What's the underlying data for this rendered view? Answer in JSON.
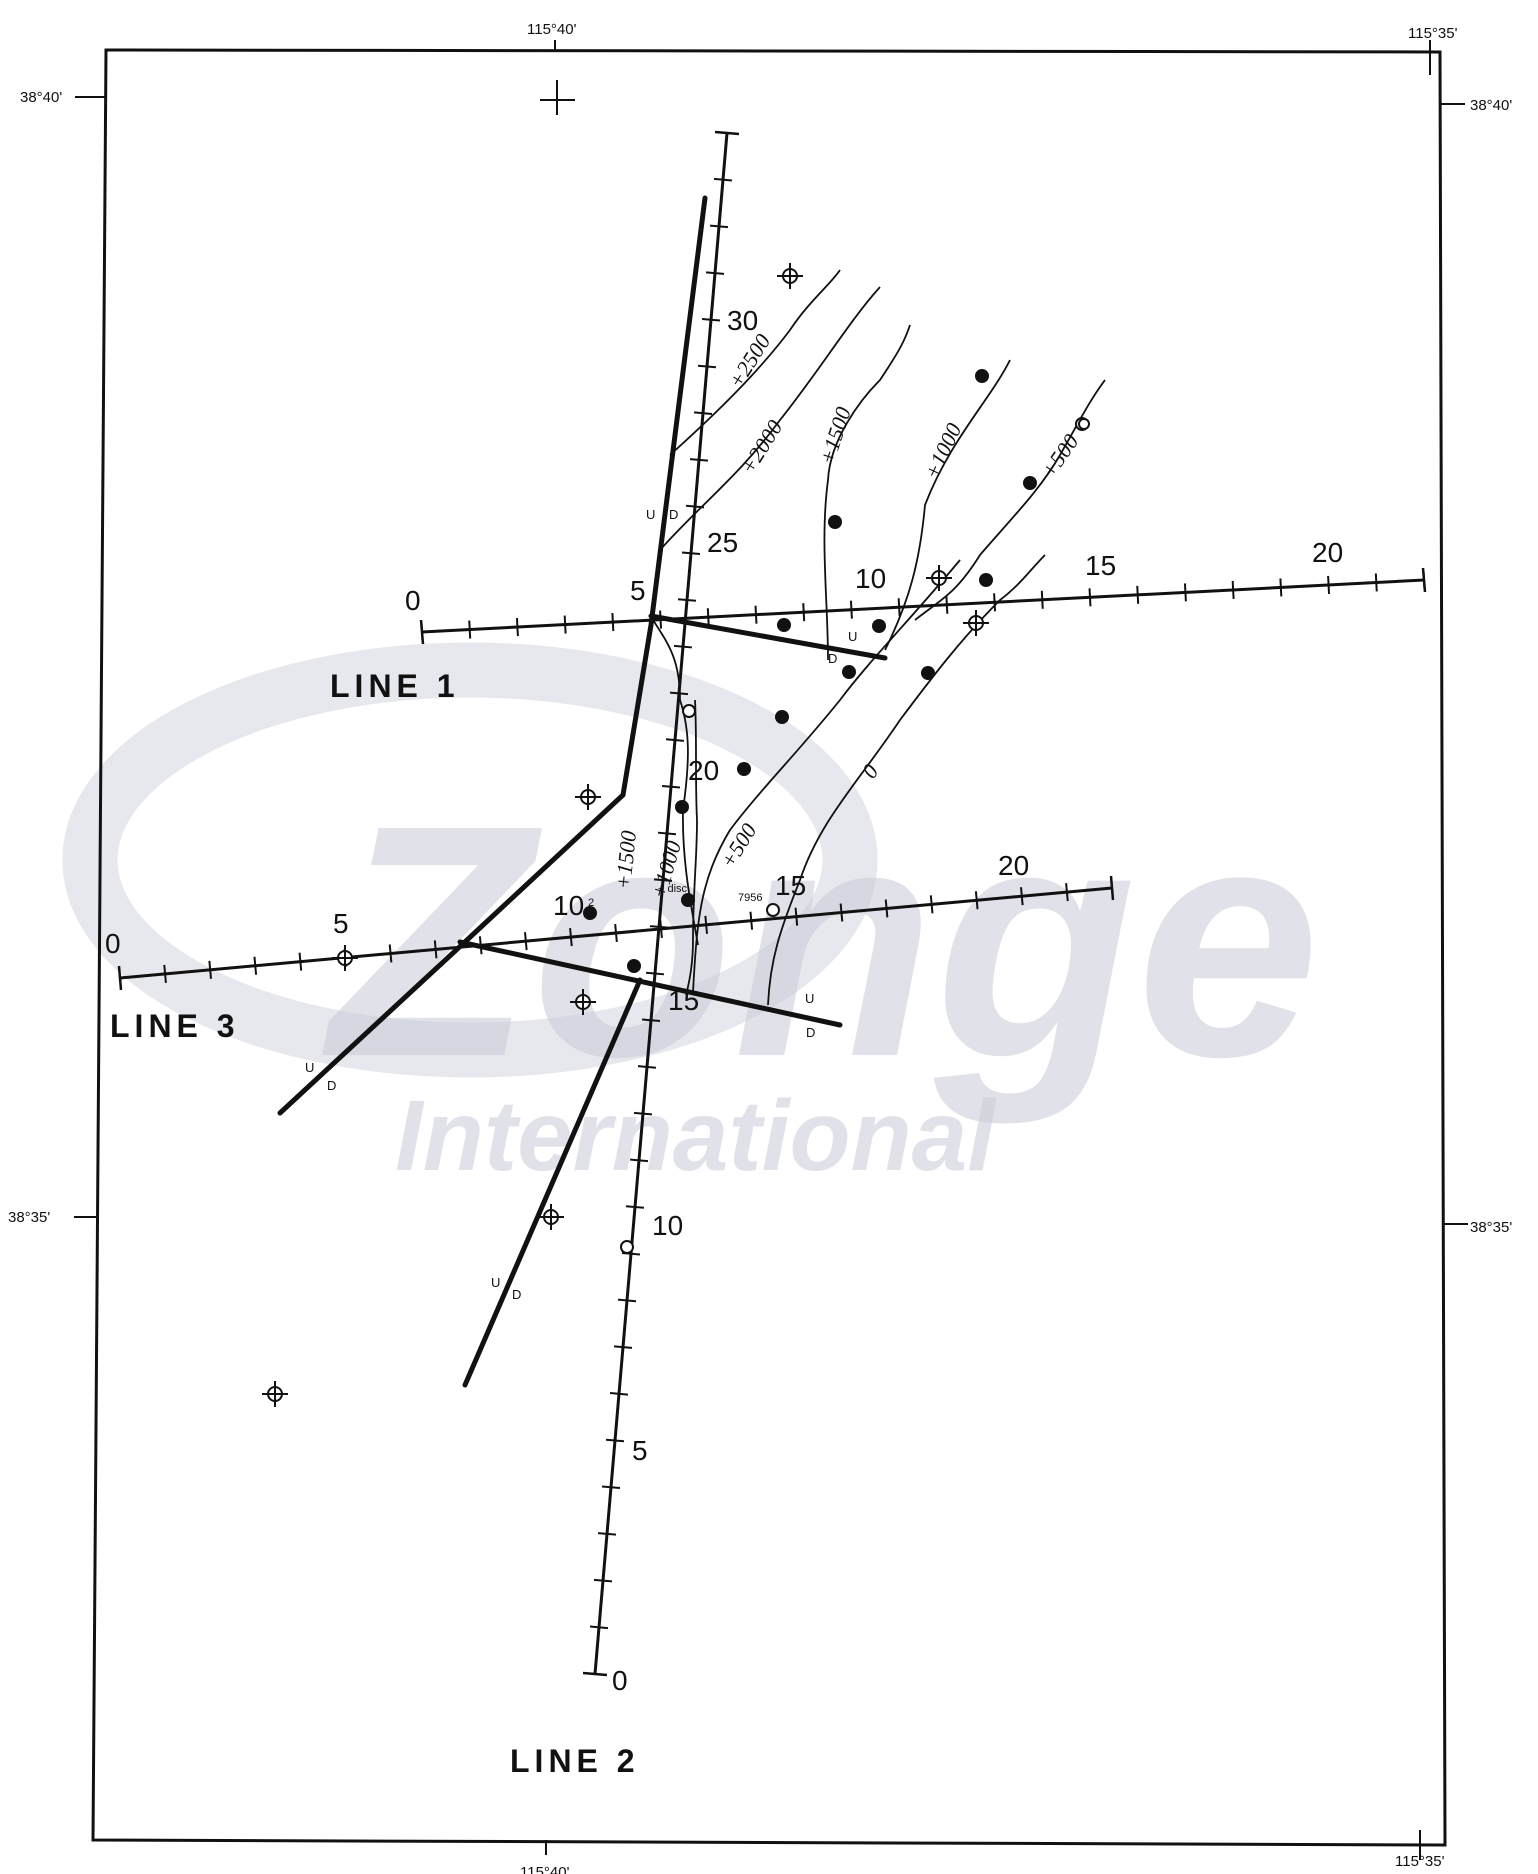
{
  "watermark": {
    "brand": "Zonge",
    "sub": "International"
  },
  "map": {
    "lon_west": "115°40'",
    "lon_east": "115°35'",
    "lat_north": "38°40'",
    "lat_south": "38°35'"
  },
  "lines": [
    {
      "name": "LINE 1",
      "stations": [
        "0",
        "5",
        "10",
        "15",
        "20"
      ]
    },
    {
      "name": "LINE 2",
      "stations": [
        "0",
        "5",
        "10",
        "15",
        "20",
        "25",
        "30"
      ]
    },
    {
      "name": "LINE 3",
      "stations": [
        "0",
        "5",
        "10",
        "15",
        "20"
      ]
    }
  ],
  "contours": [
    "+2500",
    "+2000",
    "+1500",
    "+1000",
    "+500",
    "+1500",
    "+1000",
    "+500",
    "0"
  ],
  "fault_marks": {
    "up": "U",
    "down": "D"
  },
  "annotations": {
    "disc": "+ disc.",
    "well": "7956",
    "sup": "2"
  }
}
